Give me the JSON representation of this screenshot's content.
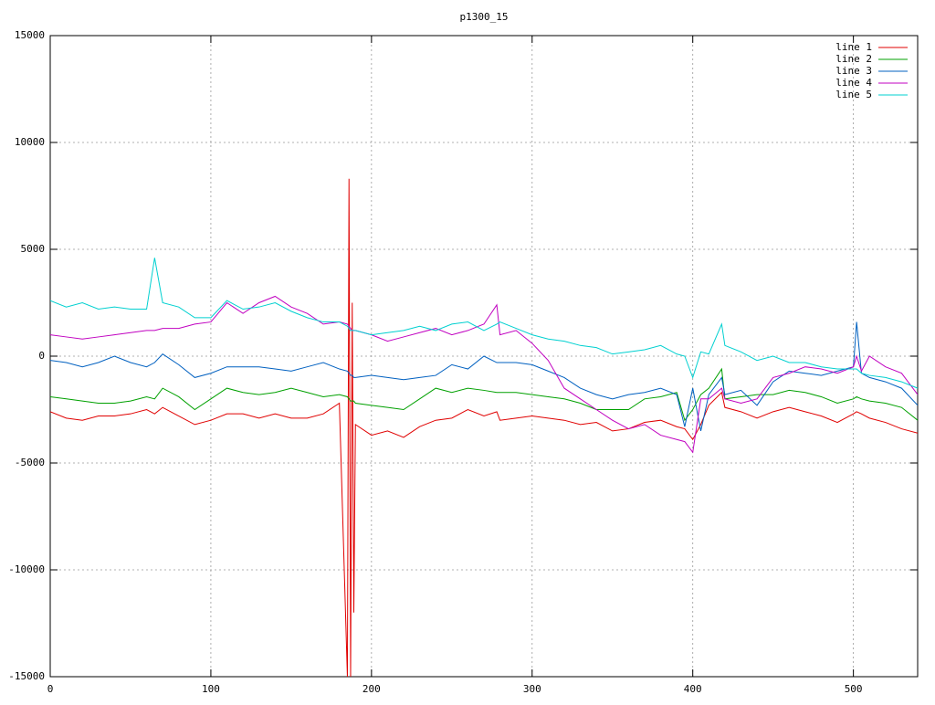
{
  "chart_data": {
    "type": "line",
    "title": "p1300_15",
    "x": [
      0,
      10,
      20,
      30,
      40,
      50,
      60,
      65,
      70,
      80,
      90,
      100,
      110,
      120,
      130,
      140,
      150,
      160,
      170,
      180,
      185,
      186,
      187,
      188,
      189,
      190,
      200,
      210,
      220,
      230,
      240,
      250,
      260,
      270,
      278,
      280,
      290,
      300,
      310,
      320,
      330,
      340,
      350,
      360,
      370,
      380,
      390,
      395,
      400,
      405,
      410,
      418,
      420,
      430,
      440,
      450,
      460,
      470,
      480,
      490,
      500,
      502,
      505,
      510,
      520,
      530,
      540
    ],
    "series": [
      {
        "name": "line 1",
        "color": "#e00000",
        "values": [
          -2600,
          -2900,
          -3000,
          -2800,
          -2800,
          -2700,
          -2500,
          -2700,
          -2400,
          -2800,
          -3200,
          -3000,
          -2700,
          -2700,
          -2900,
          -2700,
          -2900,
          -2900,
          -2700,
          -2200,
          -15000,
          8300,
          -15000,
          2500,
          -12000,
          -3200,
          -3700,
          -3500,
          -3800,
          -3300,
          -3000,
          -2900,
          -2500,
          -2800,
          -2600,
          -3000,
          -2900,
          -2800,
          -2900,
          -3000,
          -3200,
          -3100,
          -3500,
          -3400,
          -3100,
          -3000,
          -3300,
          -3400,
          -3900,
          -3200,
          -2300,
          -1700,
          -2400,
          -2600,
          -2900,
          -2600,
          -2400,
          -2600,
          -2800,
          -3100,
          -2700,
          -2600,
          -2700,
          -2900,
          -3100,
          -3400,
          -3600
        ]
      },
      {
        "name": "line 2",
        "color": "#00a000",
        "values": [
          -1900,
          -2000,
          -2100,
          -2200,
          -2200,
          -2100,
          -1900,
          -2000,
          -1500,
          -1900,
          -2500,
          -2000,
          -1500,
          -1700,
          -1800,
          -1700,
          -1500,
          -1700,
          -1900,
          -1800,
          -1900,
          -2000,
          -2100,
          -2100,
          -2100,
          -2200,
          -2300,
          -2400,
          -2500,
          -2000,
          -1500,
          -1700,
          -1500,
          -1600,
          -1700,
          -1700,
          -1700,
          -1800,
          -1900,
          -2000,
          -2200,
          -2500,
          -2500,
          -2500,
          -2000,
          -1900,
          -1700,
          -3000,
          -2500,
          -1800,
          -1500,
          -600,
          -2000,
          -1900,
          -1800,
          -1800,
          -1600,
          -1700,
          -1900,
          -2200,
          -2000,
          -1900,
          -2000,
          -2100,
          -2200,
          -2400,
          -3000
        ]
      },
      {
        "name": "line 3",
        "color": "#0060c0",
        "values": [
          -200,
          -300,
          -500,
          -300,
          0,
          -300,
          -500,
          -300,
          100,
          -400,
          -1000,
          -800,
          -500,
          -500,
          -500,
          -600,
          -700,
          -500,
          -300,
          -600,
          -700,
          -800,
          -900,
          -900,
          -1000,
          -1000,
          -900,
          -1000,
          -1100,
          -1000,
          -900,
          -400,
          -600,
          0,
          -300,
          -300,
          -300,
          -400,
          -700,
          -1000,
          -1500,
          -1800,
          -2000,
          -1800,
          -1700,
          -1500,
          -1800,
          -3300,
          -1500,
          -3500,
          -1800,
          -1000,
          -1800,
          -1600,
          -2300,
          -1200,
          -700,
          -800,
          -900,
          -700,
          -500,
          1600,
          -800,
          -1000,
          -1200,
          -1500,
          -2300
        ]
      },
      {
        "name": "line 4",
        "color": "#c000c0",
        "values": [
          1000,
          900,
          800,
          900,
          1000,
          1100,
          1200,
          1200,
          1300,
          1300,
          1500,
          1600,
          2500,
          2000,
          2500,
          2800,
          2300,
          2000,
          1500,
          1600,
          1500,
          1400,
          1300,
          1200,
          1200,
          1200,
          1000,
          700,
          900,
          1100,
          1300,
          1000,
          1200,
          1500,
          2400,
          1000,
          1200,
          600,
          -200,
          -1500,
          -2000,
          -2500,
          -3000,
          -3400,
          -3200,
          -3700,
          -3900,
          -4000,
          -4500,
          -2000,
          -2000,
          -1500,
          -2000,
          -2200,
          -2000,
          -1000,
          -800,
          -500,
          -600,
          -800,
          -500,
          0,
          -700,
          0,
          -500,
          -800,
          -1800
        ]
      },
      {
        "name": "line 5",
        "color": "#00d0d0",
        "values": [
          2600,
          2300,
          2500,
          2200,
          2300,
          2200,
          2200,
          4600,
          2500,
          2300,
          1800,
          1800,
          2600,
          2200,
          2300,
          2500,
          2100,
          1800,
          1600,
          1600,
          1400,
          1300,
          1200,
          1200,
          1200,
          1200,
          1000,
          1100,
          1200,
          1400,
          1200,
          1500,
          1600,
          1200,
          1500,
          1600,
          1300,
          1000,
          800,
          700,
          500,
          400,
          100,
          200,
          300,
          500,
          100,
          0,
          -1000,
          200,
          100,
          1500,
          500,
          200,
          -200,
          0,
          -300,
          -300,
          -500,
          -600,
          -600,
          -600,
          -800,
          -900,
          -1000,
          -1200,
          -1500
        ]
      }
    ],
    "xlim": [
      0,
      540
    ],
    "ylim": [
      -15000,
      15000
    ],
    "xticks": [
      0,
      100,
      200,
      300,
      400,
      500
    ],
    "yticks": [
      -15000,
      -10000,
      -5000,
      0,
      5000,
      10000,
      15000
    ],
    "grid": true,
    "legend": "top-right"
  }
}
